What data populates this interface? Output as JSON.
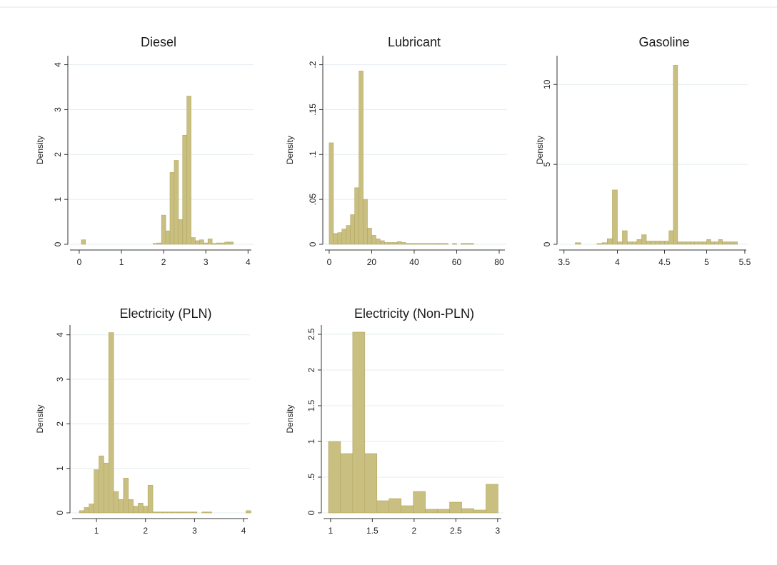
{
  "chart_data": [
    {
      "type": "histogram",
      "title": "Diesel",
      "ylabel": "Density",
      "color": "#c9bf80",
      "grid": true,
      "bins": [
        0.05,
        0.15,
        0.25,
        0.35,
        0.45,
        0.55,
        0.65,
        0.75,
        0.85,
        0.95,
        1.05,
        1.15,
        1.25,
        1.35,
        1.45,
        1.55,
        1.65,
        1.75,
        1.85,
        1.95,
        2.05,
        2.15,
        2.25,
        2.35,
        2.45,
        2.55,
        2.65,
        2.75,
        2.85,
        2.95,
        3.05,
        3.15,
        3.25,
        3.35,
        3.45,
        3.55,
        3.65
      ],
      "values": [
        0.1,
        0,
        0,
        0,
        0,
        0,
        0,
        0,
        0,
        0,
        0,
        0,
        0,
        0,
        0,
        0,
        0,
        0.02,
        0.03,
        0.65,
        0.3,
        1.6,
        1.87,
        0.55,
        2.43,
        3.3,
        0.15,
        0.08,
        0.1,
        0.03,
        0.12,
        0.02,
        0.03,
        0.03,
        0.05,
        0.05
      ],
      "xlim": [
        -0.27,
        4.13
      ],
      "xticks": [
        0,
        1,
        2,
        3,
        4
      ],
      "ylim": [
        0,
        4.2
      ],
      "yticks": [
        0,
        1,
        2,
        3,
        4
      ]
    },
    {
      "type": "histogram",
      "title": "Lubricant",
      "ylabel": "Density",
      "color": "#c9bf80",
      "grid": true,
      "bins": [
        0,
        2,
        4,
        6,
        8,
        10,
        12,
        14,
        16,
        18,
        20,
        22,
        24,
        26,
        28,
        30,
        32,
        34,
        36,
        38,
        40,
        42,
        44,
        46,
        48,
        50,
        52,
        54,
        56,
        58,
        60,
        62,
        64,
        66,
        68,
        70
      ],
      "values": [
        0.113,
        0.012,
        0.013,
        0.017,
        0.021,
        0.033,
        0.063,
        0.193,
        0.05,
        0.018,
        0.01,
        0.006,
        0.004,
        0.002,
        0.002,
        0.002,
        0.003,
        0.002,
        0.001,
        0.001,
        0.001,
        0.001,
        0.001,
        0.001,
        0.001,
        0.001,
        0.001,
        0.001,
        0,
        0.001,
        0,
        0.001,
        0.001,
        0.001,
        0
      ],
      "xlim": [
        -3,
        83.7
      ],
      "xticks": [
        0,
        20,
        40,
        60,
        80
      ],
      "ylim": [
        0,
        0.21
      ],
      "yticks": [
        0,
        {
          "value": 0.05,
          "label": ".05"
        },
        {
          "value": 0.1,
          "label": ".1"
        },
        {
          "value": 0.15,
          "label": ".15"
        },
        {
          "value": 0.2,
          "label": ".2"
        }
      ]
    },
    {
      "type": "histogram",
      "title": "Gasoline",
      "ylabel": "Density",
      "color": "#c9bf80",
      "grid": true,
      "xscale": "log",
      "bins": [
        3.6,
        3.65,
        3.7,
        3.75,
        3.8,
        3.85,
        3.9,
        3.95,
        4.0,
        4.05,
        4.1,
        4.15,
        4.2,
        4.25,
        4.3,
        4.35,
        4.4,
        4.45,
        4.5,
        4.55,
        4.6,
        4.65,
        4.7,
        4.75,
        4.8,
        4.85,
        4.9,
        4.95,
        5.0,
        5.05,
        5.1,
        5.15,
        5.2,
        5.25,
        5.3,
        5.35,
        5.4
      ],
      "values": [
        0.1,
        0,
        0,
        0,
        0.05,
        0.1,
        0.35,
        3.4,
        0.15,
        0.85,
        0.15,
        0.15,
        0.3,
        0.6,
        0.2,
        0.2,
        0.2,
        0.2,
        0.2,
        0.85,
        11.2,
        0.15,
        0.15,
        0.15,
        0.15,
        0.15,
        0.15,
        0.15,
        0.3,
        0.15,
        0.15,
        0.3,
        0.15,
        0.15,
        0.15,
        0.15
      ],
      "xlim": [
        3.44,
        5.55
      ],
      "xticks": [
        3.5,
        4,
        4.5,
        5,
        5.5
      ],
      "ylim": [
        0,
        11.8
      ],
      "yticks": [
        0,
        5,
        10
      ]
    },
    {
      "type": "histogram",
      "title": "Electricity (PLN)",
      "ylabel": "Density",
      "color": "#c9bf80",
      "grid": true,
      "bins": [
        0.65,
        0.75,
        0.85,
        0.95,
        1.05,
        1.15,
        1.25,
        1.35,
        1.45,
        1.55,
        1.65,
        1.75,
        1.85,
        1.95,
        2.05,
        2.15,
        2.25,
        2.35,
        2.45,
        2.55,
        2.65,
        2.75,
        2.85,
        2.95,
        3.05,
        3.15,
        3.25,
        3.35,
        3.45,
        3.55,
        3.65,
        3.75,
        3.85,
        3.95,
        4.05,
        4.15
      ],
      "values": [
        0.05,
        0.12,
        0.2,
        0.97,
        1.28,
        1.12,
        4.05,
        0.48,
        0.3,
        0.78,
        0.3,
        0.15,
        0.22,
        0.15,
        0.62,
        0.02,
        0.02,
        0.02,
        0.02,
        0.02,
        0.02,
        0.02,
        0.02,
        0.02,
        0,
        0.02,
        0.02,
        0,
        0,
        0,
        0,
        0,
        0,
        0,
        0.05
      ],
      "xlim": [
        0.46,
        4.13
      ],
      "xticks": [
        1,
        2,
        3,
        4
      ],
      "ylim": [
        0,
        4.22
      ],
      "yticks": [
        0,
        1,
        2,
        3,
        4
      ]
    },
    {
      "type": "histogram",
      "title": "Electricity (Non-PLN)",
      "ylabel": "Density",
      "color": "#c9bf80",
      "grid": true,
      "bins": [
        0.975,
        1.12,
        1.265,
        1.41,
        1.555,
        1.7,
        1.845,
        1.99,
        2.135,
        2.28,
        2.425,
        2.57,
        2.715,
        2.86,
        3.005
      ],
      "values": [
        1.0,
        0.83,
        2.53,
        0.83,
        0.17,
        0.2,
        0.1,
        0.3,
        0.05,
        0.05,
        0.15,
        0.06,
        0.04,
        0.4
      ],
      "xlim": [
        0.89,
        3.07
      ],
      "xticks": [
        1,
        1.5,
        2,
        2.5,
        3
      ],
      "ylim": [
        0,
        2.63
      ],
      "yticks": [
        0,
        {
          "value": 0.5,
          "label": ".5"
        },
        1,
        1.5,
        2,
        2.5
      ]
    }
  ]
}
